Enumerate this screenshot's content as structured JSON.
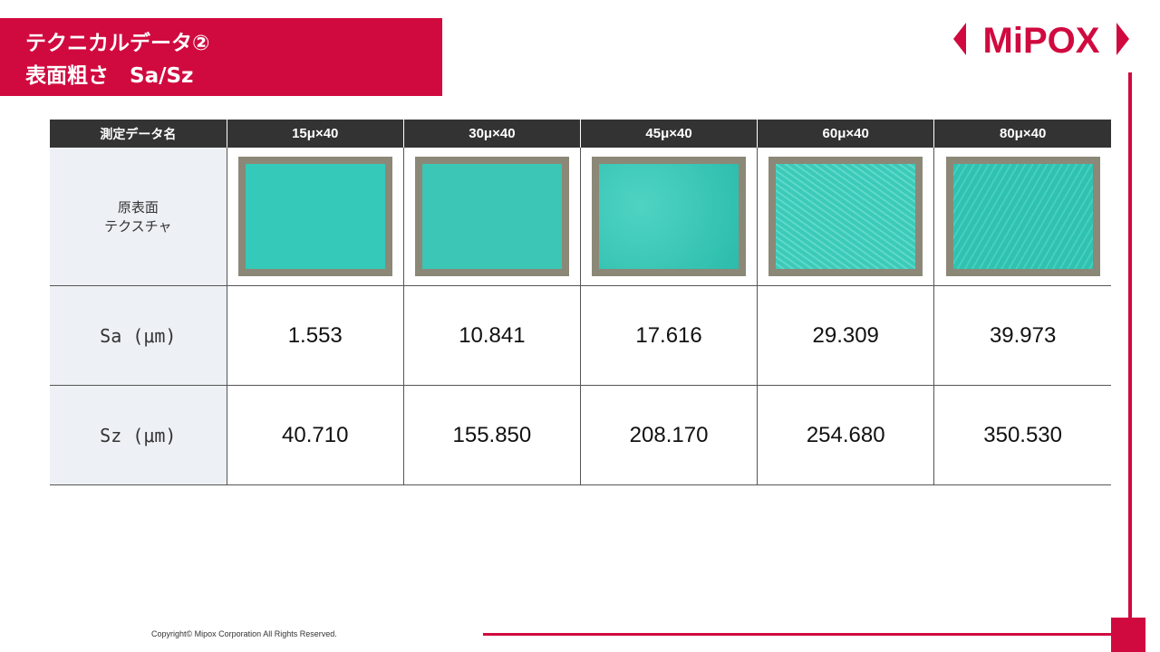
{
  "header": {
    "title_lines": [
      "テクニカルデータ②",
      "表面粗さ　Sa/Sz"
    ],
    "logo": "MiPOX"
  },
  "table": {
    "columns": [
      "測定データ名",
      "15μ×40",
      "30μ×40",
      "45μ×40",
      "60μ×40",
      "80μ×40"
    ],
    "rows": [
      [
        "原表面\nテクスチャ"
      ],
      [
        "Sa (μm)",
        "1.553",
        "10.841",
        "17.616",
        "29.309",
        "39.973"
      ],
      [
        "Sz (μm)",
        "40.710",
        "155.850",
        "208.170",
        "254.680",
        "350.530"
      ]
    ]
  },
  "footer": {
    "copyright": "Copyright© Mipox Corporation All Rights Reserved."
  }
}
